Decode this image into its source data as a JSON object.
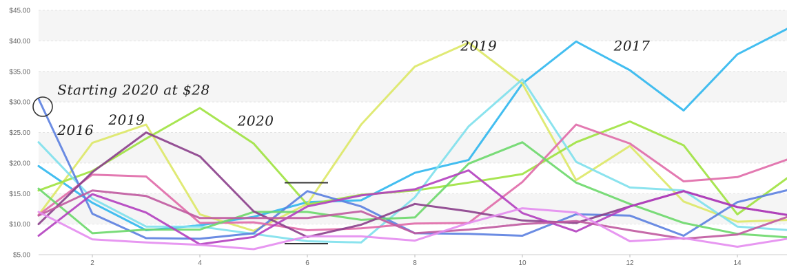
{
  "chart_data": {
    "type": "line",
    "x": [
      1,
      2,
      3,
      4,
      5,
      6,
      7,
      8,
      9,
      10,
      11,
      12,
      13,
      14,
      15
    ],
    "ylim": [
      5,
      45
    ],
    "y_ticks": [
      "$5.00",
      "$10.00",
      "$15.00",
      "$20.00",
      "$25.00",
      "$30.00",
      "$35.00",
      "$40.00",
      "$45.00"
    ],
    "x_ticks": [
      "2",
      "4",
      "6",
      "8",
      "10",
      "12",
      "14"
    ],
    "grid": true,
    "series": [
      {
        "name": "2017",
        "color": "#2fb7ee",
        "values": [
          19.5,
          13.5,
          9.0,
          9.8,
          11.2,
          13.6,
          13.9,
          18.4,
          20.5,
          33.0,
          39.9,
          35.2,
          28.6,
          37.8,
          42.3
        ]
      },
      {
        "name": "2019",
        "color": "#dde866",
        "values": [
          11.5,
          23.3,
          26.3,
          11.6,
          8.9,
          13.3,
          26.3,
          35.8,
          39.7,
          33.0,
          17.2,
          22.8,
          13.7,
          10.4,
          10.7
        ]
      },
      {
        "name": "2020",
        "color": "#9ee23f",
        "values": [
          15.5,
          18.7,
          24.0,
          29.0,
          23.2,
          13.2,
          14.8,
          15.5,
          16.8,
          18.2,
          23.4,
          26.8,
          22.9,
          11.6,
          18.0
        ]
      },
      {
        "name": "",
        "color": "#7ee0ec",
        "values": [
          23.4,
          14.2,
          9.6,
          9.6,
          8.4,
          7.2,
          7.0,
          14.4,
          26.0,
          33.7,
          20.2,
          16.0,
          15.5,
          9.6,
          9.0
        ]
      },
      {
        "name": "",
        "color": "#5b7fe0",
        "values": [
          30.5,
          11.7,
          7.7,
          7.6,
          8.5,
          15.4,
          12.9,
          8.5,
          8.4,
          8.1,
          11.6,
          11.4,
          8.1,
          13.6,
          15.7
        ]
      },
      {
        "name": "",
        "color": "#e06aa8",
        "values": [
          11.5,
          18.1,
          17.8,
          10.2,
          10.3,
          9.0,
          9.3,
          10.1,
          10.2,
          16.9,
          26.3,
          23.2,
          17.0,
          17.7,
          20.8
        ]
      },
      {
        "name": "",
        "color": "#6cd86a",
        "values": [
          15.8,
          8.5,
          9.1,
          9.1,
          12.0,
          12.0,
          10.7,
          11.1,
          19.9,
          23.4,
          16.8,
          13.3,
          10.2,
          8.4,
          7.8
        ]
      },
      {
        "name": "",
        "color": "#8b3f8b",
        "values": [
          10.0,
          18.5,
          25.0,
          21.1,
          12.1,
          7.9,
          9.9,
          13.3,
          12.1,
          10.6,
          10.2,
          12.9,
          15.4,
          12.8,
          11.4
        ]
      },
      {
        "name": "",
        "color": "#b23fbf",
        "values": [
          8.1,
          14.9,
          11.9,
          6.7,
          7.9,
          12.9,
          14.7,
          15.7,
          18.8,
          11.8,
          8.8,
          12.9,
          15.4,
          12.8,
          11.4
        ]
      },
      {
        "name": "",
        "color": "#c05aa0",
        "values": [
          11.4,
          15.5,
          14.6,
          11.0,
          11.0,
          11.0,
          12.1,
          8.5,
          9.1,
          10.0,
          10.5,
          9.0,
          7.6,
          8.3,
          11.4
        ]
      },
      {
        "name": "",
        "color": "#e48cf0",
        "values": [
          12.0,
          7.5,
          7.0,
          6.6,
          5.9,
          8.0,
          8.0,
          7.3,
          10.2,
          12.6,
          11.9,
          7.2,
          7.7,
          6.3,
          7.7
        ]
      }
    ],
    "annotations": [
      {
        "text": "Starting 2020 at $28",
        "x": 1.35,
        "y": 31.2
      },
      {
        "text": "2016",
        "x": 1.35,
        "y": 24.6
      },
      {
        "text": "2019",
        "x": 2.3,
        "y": 26.3
      },
      {
        "text": "2020",
        "x": 4.7,
        "y": 26.1
      },
      {
        "text": "2019",
        "x": 8.85,
        "y": 38.4
      },
      {
        "text": "2017",
        "x": 11.7,
        "y": 38.4
      }
    ]
  }
}
